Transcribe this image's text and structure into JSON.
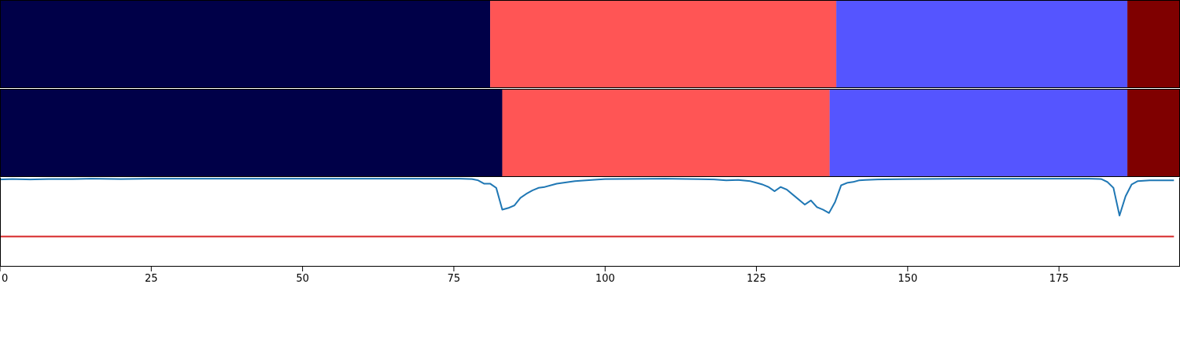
{
  "chart_data": [
    {
      "type": "segment-bar",
      "segments": [
        {
          "start": 0,
          "end": 81,
          "color": "#000048"
        },
        {
          "start": 81,
          "end": 138.2,
          "color": "#ff5555"
        },
        {
          "start": 138.2,
          "end": 186.3,
          "color": "#5555ff"
        },
        {
          "start": 186.3,
          "end": 195,
          "color": "#7f0000"
        }
      ]
    },
    {
      "type": "segment-bar",
      "segments": [
        {
          "start": 0,
          "end": 83,
          "color": "#000048"
        },
        {
          "start": 83,
          "end": 137.1,
          "color": "#ff5555"
        },
        {
          "start": 137.1,
          "end": 186.3,
          "color": "#5555ff"
        },
        {
          "start": 186.3,
          "end": 195,
          "color": "#7f0000"
        }
      ]
    },
    {
      "type": "line",
      "xlim": [
        0,
        195
      ],
      "ylim": [
        -0.05,
        1.0
      ],
      "xticks": [
        0,
        25,
        50,
        75,
        100,
        125,
        150,
        175
      ],
      "x_tick_labels": [
        "0",
        "25",
        "50",
        "75",
        "100",
        "125",
        "150",
        "175"
      ],
      "threshold": {
        "value": 0.3,
        "color": "#d62728"
      },
      "series": [
        {
          "color": "#1f77b4",
          "x": [
            0,
            2,
            5,
            8,
            12,
            15,
            20,
            25,
            30,
            40,
            50,
            60,
            70,
            76,
            78,
            79,
            80,
            81,
            82,
            83,
            84,
            85,
            86,
            87,
            88,
            89,
            90,
            92,
            95,
            100,
            110,
            118,
            120,
            122,
            124,
            125,
            126,
            127,
            128,
            129,
            130,
            131,
            132,
            133,
            134,
            135,
            136,
            137,
            138,
            139,
            140,
            141,
            142,
            143,
            145,
            150,
            160,
            170,
            180,
            182,
            183,
            184,
            185,
            186,
            187,
            188,
            190,
            192,
            194
          ],
          "y": [
            0.98,
            0.985,
            0.98,
            0.985,
            0.985,
            0.99,
            0.985,
            0.99,
            0.99,
            0.99,
            0.99,
            0.99,
            0.99,
            0.99,
            0.985,
            0.97,
            0.93,
            0.93,
            0.88,
            0.62,
            0.64,
            0.67,
            0.76,
            0.81,
            0.85,
            0.88,
            0.89,
            0.93,
            0.96,
            0.985,
            0.99,
            0.98,
            0.97,
            0.975,
            0.96,
            0.94,
            0.92,
            0.89,
            0.84,
            0.89,
            0.86,
            0.8,
            0.74,
            0.68,
            0.73,
            0.65,
            0.62,
            0.58,
            0.71,
            0.91,
            0.94,
            0.95,
            0.97,
            0.975,
            0.98,
            0.985,
            0.99,
            0.99,
            0.99,
            0.985,
            0.95,
            0.88,
            0.55,
            0.78,
            0.92,
            0.96,
            0.97,
            0.97,
            0.97
          ]
        }
      ]
    }
  ]
}
